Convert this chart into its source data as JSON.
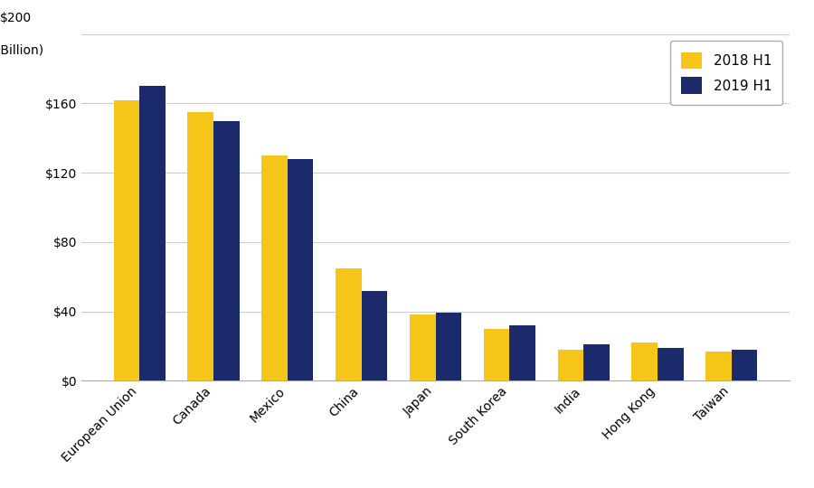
{
  "categories": [
    "European Union",
    "Canada",
    "Mexico",
    "China",
    "Japan",
    "South Korea",
    "India",
    "Hong Kong",
    "Taiwan"
  ],
  "values_2018": [
    162,
    155,
    130,
    65,
    38,
    30,
    18,
    22,
    17
  ],
  "values_2019": [
    170,
    150,
    128,
    52,
    39,
    32,
    21,
    19,
    18
  ],
  "color_2018": "#F5C518",
  "color_2019": "#1B2A6B",
  "ylim": [
    0,
    200
  ],
  "yticks": [
    0,
    40,
    80,
    120,
    160,
    200
  ],
  "ytick_labels": [
    "$0",
    "$40",
    "$80",
    "$120",
    "$160",
    "$200"
  ],
  "legend_labels": [
    "2018 H1",
    "2019 H1"
  ],
  "background_color": "#ffffff",
  "grid_color": "#cccccc",
  "bar_width": 0.35,
  "tick_fontsize": 10,
  "legend_fontsize": 11,
  "ylabel_top": "$200",
  "ylabel_sub": "($Billion)"
}
